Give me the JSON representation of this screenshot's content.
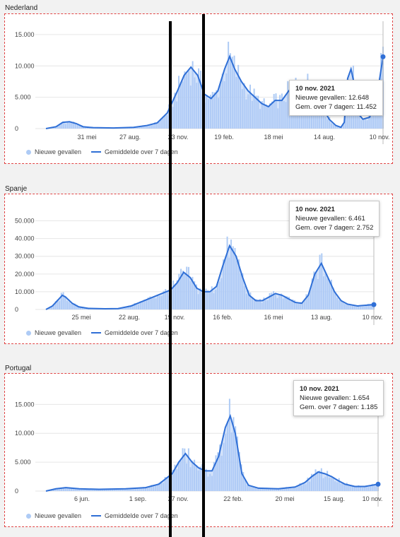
{
  "colors": {
    "bar": "#aecbf5",
    "line": "#2f6fd6",
    "grid": "#e6e6e6",
    "border": "#e04545"
  },
  "charts": [
    {
      "panel_title": "Nederland",
      "tooltip": {
        "date": "10 nov. 2021",
        "cases": "Nieuwe gevallen: 12.648",
        "avg": "Gem. over 7 dagen: 11.452"
      },
      "legend": {
        "cases": "Nieuwe gevallen",
        "avg": "Gemiddelde over 7 dagen"
      },
      "chart_data": {
        "type": "area",
        "x_labels": [
          "31 mei",
          "27 aug.",
          "23 nov.",
          "19 feb.",
          "18 mei",
          "14 aug.",
          "10 nov."
        ],
        "y_ticks": [
          "0",
          "5.000",
          "10.000",
          "15.000"
        ],
        "ylim": [
          0,
          16000
        ],
        "series": [
          {
            "name": "Nieuwe gevallen",
            "kind": "bars"
          },
          {
            "name": "Gemiddelde over 7 dagen",
            "kind": "line",
            "points": [
              [
                0,
                0
              ],
              [
                0.03,
                300
              ],
              [
                0.05,
                1000
              ],
              [
                0.07,
                1100
              ],
              [
                0.09,
                800
              ],
              [
                0.11,
                300
              ],
              [
                0.14,
                150
              ],
              [
                0.2,
                100
              ],
              [
                0.26,
                200
              ],
              [
                0.3,
                500
              ],
              [
                0.33,
                900
              ],
              [
                0.36,
                2500
              ],
              [
                0.39,
                6000
              ],
              [
                0.41,
                8500
              ],
              [
                0.43,
                9800
              ],
              [
                0.45,
                8500
              ],
              [
                0.47,
                5500
              ],
              [
                0.49,
                4800
              ],
              [
                0.51,
                6000
              ],
              [
                0.53,
                9500
              ],
              [
                0.545,
                11500
              ],
              [
                0.56,
                9500
              ],
              [
                0.58,
                7500
              ],
              [
                0.6,
                6000
              ],
              [
                0.62,
                5000
              ],
              [
                0.64,
                4000
              ],
              [
                0.66,
                3500
              ],
              [
                0.68,
                4500
              ],
              [
                0.7,
                4500
              ],
              [
                0.72,
                6000
              ],
              [
                0.74,
                7000
              ],
              [
                0.76,
                7500
              ],
              [
                0.78,
                7000
              ],
              [
                0.8,
                6500
              ],
              [
                0.82,
                3500
              ],
              [
                0.84,
                1500
              ],
              [
                0.86,
                500
              ],
              [
                0.875,
                200
              ],
              [
                0.885,
                1000
              ],
              [
                0.895,
                8000
              ],
              [
                0.905,
                9500
              ],
              [
                0.915,
                7000
              ],
              [
                0.925,
                2500
              ],
              [
                0.94,
                1500
              ],
              [
                0.96,
                1800
              ],
              [
                0.98,
                4500
              ],
              [
                1,
                11452
              ]
            ]
          }
        ]
      }
    },
    {
      "panel_title": "Spanje",
      "tooltip": {
        "date": "10 nov. 2021",
        "cases": "Nieuwe gevallen: 6.461",
        "avg": "Gem. over 7 dagen: 2.752"
      },
      "legend": {
        "cases": "Nieuwe gevallen",
        "avg": "Gemiddelde over 7 dagen"
      },
      "chart_data": {
        "type": "area",
        "x_labels": [
          "25 mei",
          "22 aug.",
          "19 nov.",
          "16 feb.",
          "16 mei",
          "13 aug.",
          "10 nov."
        ],
        "y_ticks": [
          "0",
          "10.000",
          "20.000",
          "30.000",
          "40.000",
          "50.000"
        ],
        "ylim": [
          0,
          55000
        ],
        "series": [
          {
            "name": "Nieuwe gevallen",
            "kind": "bars"
          },
          {
            "name": "Gemiddelde over 7 dagen",
            "kind": "line",
            "points": [
              [
                0,
                0
              ],
              [
                0.02,
                2000
              ],
              [
                0.04,
                6000
              ],
              [
                0.05,
                8000
              ],
              [
                0.06,
                7000
              ],
              [
                0.08,
                3500
              ],
              [
                0.1,
                1500
              ],
              [
                0.13,
                600
              ],
              [
                0.18,
                400
              ],
              [
                0.22,
                500
              ],
              [
                0.26,
                2000
              ],
              [
                0.3,
                5000
              ],
              [
                0.34,
                8000
              ],
              [
                0.38,
                11000
              ],
              [
                0.4,
                15000
              ],
              [
                0.42,
                21000
              ],
              [
                0.44,
                18000
              ],
              [
                0.46,
                12000
              ],
              [
                0.48,
                10000
              ],
              [
                0.5,
                10000
              ],
              [
                0.52,
                13000
              ],
              [
                0.54,
                25000
              ],
              [
                0.56,
                36000
              ],
              [
                0.58,
                30000
              ],
              [
                0.6,
                18000
              ],
              [
                0.62,
                8000
              ],
              [
                0.64,
                5000
              ],
              [
                0.66,
                5000
              ],
              [
                0.68,
                7000
              ],
              [
                0.7,
                9000
              ],
              [
                0.72,
                8000
              ],
              [
                0.74,
                6000
              ],
              [
                0.76,
                4000
              ],
              [
                0.78,
                3500
              ],
              [
                0.8,
                8000
              ],
              [
                0.82,
                20000
              ],
              [
                0.84,
                26000
              ],
              [
                0.86,
                18000
              ],
              [
                0.88,
                10000
              ],
              [
                0.9,
                5000
              ],
              [
                0.92,
                3000
              ],
              [
                0.95,
                2000
              ],
              [
                1,
                2752
              ]
            ]
          }
        ]
      }
    },
    {
      "panel_title": "Portugal",
      "tooltip": {
        "date": "10 nov. 2021",
        "cases": "Nieuwe gevallen: 1.654",
        "avg": "Gem. over 7 dagen: 1.185"
      },
      "legend": {
        "cases": "Nieuwe gevallen",
        "avg": "Gemiddelde over 7 dagen"
      },
      "chart_data": {
        "type": "area",
        "x_labels": [
          "6 jun.",
          "1 sep.",
          "27 nov.",
          "22 feb.",
          "20 mei",
          "15 aug.",
          "10 nov."
        ],
        "y_ticks": [
          "0",
          "5.000",
          "10.000",
          "15.000"
        ],
        "ylim": [
          0,
          17000
        ],
        "series": [
          {
            "name": "Nieuwe gevallen",
            "kind": "bars"
          },
          {
            "name": "Gemiddelde over 7 dagen",
            "kind": "line",
            "points": [
              [
                0,
                0
              ],
              [
                0.03,
                400
              ],
              [
                0.06,
                600
              ],
              [
                0.1,
                400
              ],
              [
                0.16,
                300
              ],
              [
                0.24,
                400
              ],
              [
                0.3,
                600
              ],
              [
                0.34,
                1200
              ],
              [
                0.38,
                3000
              ],
              [
                0.4,
                5000
              ],
              [
                0.42,
                6500
              ],
              [
                0.44,
                5000
              ],
              [
                0.46,
                4000
              ],
              [
                0.48,
                3500
              ],
              [
                0.5,
                3500
              ],
              [
                0.52,
                6000
              ],
              [
                0.54,
                11000
              ],
              [
                0.555,
                13000
              ],
              [
                0.57,
                10000
              ],
              [
                0.59,
                3000
              ],
              [
                0.61,
                1000
              ],
              [
                0.64,
                500
              ],
              [
                0.7,
                400
              ],
              [
                0.75,
                700
              ],
              [
                0.78,
                1500
              ],
              [
                0.8,
                2500
              ],
              [
                0.82,
                3300
              ],
              [
                0.84,
                3000
              ],
              [
                0.86,
                2500
              ],
              [
                0.88,
                1800
              ],
              [
                0.9,
                1200
              ],
              [
                0.93,
                800
              ],
              [
                0.96,
                800
              ],
              [
                1,
                1185
              ]
            ]
          }
        ]
      }
    }
  ]
}
